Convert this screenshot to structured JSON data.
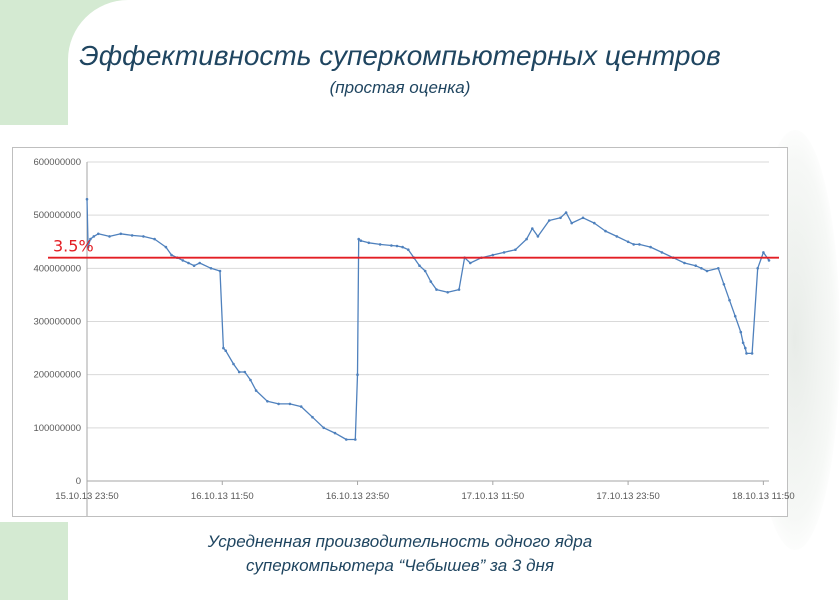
{
  "slide": {
    "title": "Эффективность суперкомпьютерных центров",
    "subtitle": "(простая оценка)",
    "caption_line1": "Усредненная производительность одного ядра",
    "caption_line2": "суперкомпьютера “Чебышев” за 3 дня"
  },
  "colors": {
    "title": "#1f4560",
    "series": "#4f81bd",
    "threshold": "#e31e24",
    "grid": "#d9d9d9",
    "deco": "#d4ead2"
  },
  "chart_data": {
    "type": "line",
    "title": "",
    "xlabel": "",
    "ylabel": "",
    "ylim": [
      0,
      600000000
    ],
    "y_ticks": [
      0,
      100000000,
      200000000,
      300000000,
      400000000,
      500000000,
      600000000
    ],
    "y_tick_labels": [
      "0",
      "100000000",
      "200000000",
      "300000000",
      "400000000",
      "500000000",
      "600000000"
    ],
    "x_unit": "hours since 15.10.13 23:50",
    "xlim": [
      0,
      60.5
    ],
    "x_ticks": [
      0,
      12,
      24,
      36,
      48,
      60
    ],
    "x_tick_labels": [
      "15.10.13 23:50",
      "16.10.13 11:50",
      "16.10.13 23:50",
      "17.10.13 11:50",
      "17.10.13 23:50",
      "18.10.13 11:50"
    ],
    "grid": true,
    "legend": "none",
    "threshold": {
      "value": 420000000,
      "label": "3.5%"
    },
    "series": [
      {
        "x": [
          0,
          0.1,
          0.3,
          0.6,
          1.0,
          2.0,
          3.0,
          4.0,
          5.0,
          6.0,
          7.0,
          7.5,
          8.0,
          8.5,
          9.0,
          9.5,
          10.0,
          11.0,
          11.8,
          12.1,
          12.3,
          13.0,
          13.5,
          14.0,
          14.5,
          15.0,
          16.0,
          17.0,
          18.0,
          19.0,
          20.0,
          21.0,
          22.0,
          23.0,
          23.8,
          24.0,
          24.1,
          24.3,
          25.0,
          26.0,
          27.0,
          27.5,
          28.0,
          28.5,
          29.0,
          29.5,
          30.0,
          30.5,
          31.0,
          32.0,
          33.0,
          33.5,
          34.0,
          35.0,
          36.0,
          37.0,
          38.0,
          39.0,
          39.5,
          40.0,
          41.0,
          42.0,
          42.5,
          43.0,
          44.0,
          45.0,
          46.0,
          47.0,
          48.0,
          48.5,
          49.0,
          50.0,
          51.0,
          52.0,
          53.0,
          54.0,
          54.5,
          55.0,
          56.0,
          56.5,
          57.0,
          57.5,
          58.0,
          58.2,
          58.4,
          58.5,
          59.0,
          59.5,
          60.0,
          60.5
        ],
        "y": [
          530000000,
          440000000,
          455000000,
          460000000,
          465000000,
          460000000,
          465000000,
          462000000,
          460000000,
          455000000,
          440000000,
          425000000,
          420000000,
          415000000,
          410000000,
          405000000,
          410000000,
          400000000,
          395000000,
          250000000,
          245000000,
          220000000,
          205000000,
          205000000,
          190000000,
          170000000,
          150000000,
          145000000,
          145000000,
          140000000,
          120000000,
          100000000,
          90000000,
          78000000,
          78000000,
          200000000,
          455000000,
          452000000,
          448000000,
          445000000,
          443000000,
          442000000,
          440000000,
          435000000,
          420000000,
          405000000,
          395000000,
          375000000,
          360000000,
          355000000,
          360000000,
          420000000,
          410000000,
          420000000,
          425000000,
          430000000,
          435000000,
          455000000,
          475000000,
          460000000,
          490000000,
          495000000,
          505000000,
          485000000,
          495000000,
          485000000,
          470000000,
          460000000,
          450000000,
          445000000,
          445000000,
          440000000,
          430000000,
          420000000,
          410000000,
          405000000,
          400000000,
          395000000,
          400000000,
          370000000,
          340000000,
          310000000,
          280000000,
          260000000,
          250000000,
          240000000,
          240000000,
          400000000,
          430000000,
          415000000
        ]
      }
    ]
  }
}
